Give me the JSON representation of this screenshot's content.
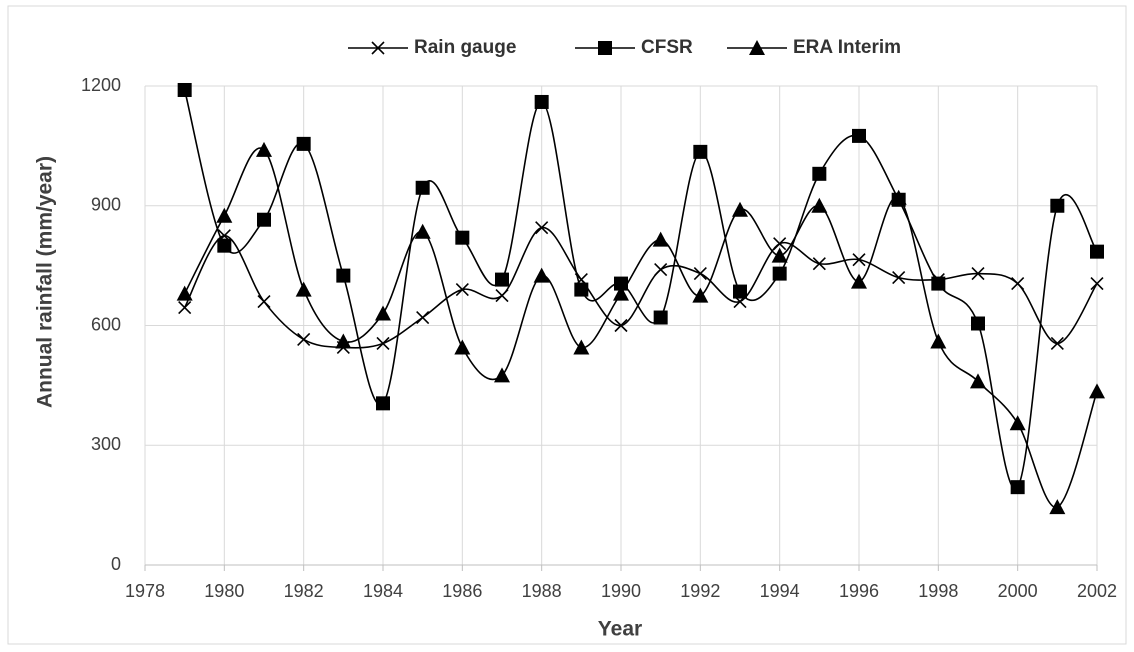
{
  "chart_data": {
    "type": "line",
    "xlabel": "Year",
    "ylabel": "Annual rainfall  (mm/year)",
    "x": [
      1979,
      1980,
      1981,
      1982,
      1983,
      1984,
      1985,
      1986,
      1987,
      1988,
      1989,
      1990,
      1991,
      1992,
      1993,
      1994,
      1995,
      1996,
      1997,
      1998,
      1999,
      2000,
      2001,
      2002
    ],
    "series": [
      {
        "name": "Rain gauge",
        "color": "#000000",
        "marker": "x",
        "values": [
          645,
          825,
          660,
          565,
          545,
          555,
          620,
          690,
          675,
          845,
          715,
          600,
          740,
          730,
          660,
          805,
          755,
          765,
          720,
          715,
          730,
          705,
          555,
          705
        ]
      },
      {
        "name": "CFSR",
        "color": "#000000",
        "marker": "square",
        "values": [
          1190,
          800,
          865,
          1055,
          725,
          405,
          945,
          820,
          715,
          1160,
          690,
          705,
          620,
          1035,
          685,
          730,
          980,
          1075,
          915,
          705,
          605,
          195,
          900,
          785
        ]
      },
      {
        "name": "ERA Interim",
        "color": "#000000",
        "marker": "triangle",
        "values": [
          680,
          875,
          1040,
          690,
          560,
          630,
          835,
          545,
          475,
          725,
          545,
          680,
          815,
          675,
          890,
          775,
          900,
          710,
          920,
          560,
          460,
          355,
          145,
          435
        ]
      }
    ],
    "xlim": [
      1978,
      2002
    ],
    "xticks": [
      1978,
      1980,
      1982,
      1984,
      1986,
      1988,
      1990,
      1992,
      1994,
      1996,
      1998,
      2000,
      2002
    ],
    "ylim": [
      0,
      1200
    ],
    "yticks": [
      0,
      300,
      600,
      900,
      1200
    ],
    "grid": true,
    "smooth": true,
    "legend": "top"
  }
}
